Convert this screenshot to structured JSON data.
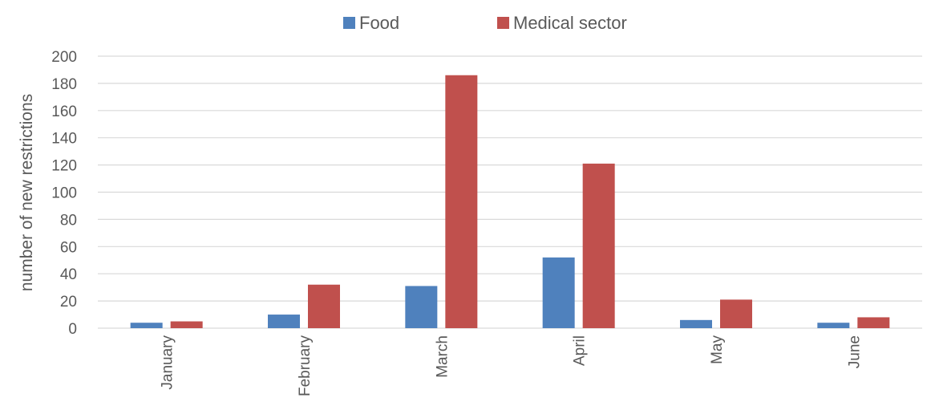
{
  "chart_data": {
    "type": "bar",
    "title": "",
    "xlabel": "",
    "ylabel": "number of new restrictions",
    "categories": [
      "January",
      "February",
      "March",
      "April",
      "May",
      "June"
    ],
    "series": [
      {
        "name": "Food",
        "color": "#4f81bd",
        "values": [
          4,
          10,
          31,
          52,
          6,
          4
        ]
      },
      {
        "name": "Medical sector",
        "color": "#c0504d",
        "values": [
          5,
          32,
          186,
          121,
          21,
          8
        ]
      }
    ],
    "ylim": [
      0,
      200
    ],
    "yticks": [
      0,
      20,
      40,
      60,
      80,
      100,
      120,
      140,
      160,
      180,
      200
    ],
    "grid": true,
    "legend_position": "top-center"
  }
}
